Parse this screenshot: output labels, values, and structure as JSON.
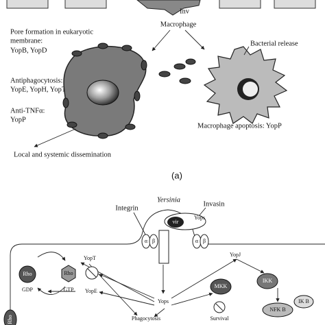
{
  "panel_a": {
    "inv": "Inv",
    "macrophage": "Macrophage",
    "pore_formation": [
      "Pore formation in eukaryotic",
      "membrane:"
    ],
    "pore_yops": "YopB, YopD",
    "antiphagocytosis": "Antiphagocytosis:",
    "antiphagocytosis_yops": "YopE, YopH, YopT",
    "anti_tnf": "Anti-TNFα:",
    "anti_tnf_yops": "YopP",
    "bacterial_release": "Bacterial release",
    "apoptosis": "Macrophage apoptosis: YopP",
    "dissemination": "Local and systemic dissemination",
    "label": "(a)"
  },
  "panel_b": {
    "organism": "Yersinia",
    "integrin": "Integrin",
    "invasin": "Invasin",
    "vir": "vir",
    "bacterial_yops": "Yops",
    "alpha": "α",
    "beta": "β",
    "rho_gdp": {
      "protein": "Rho",
      "state": "GDP"
    },
    "rho_gtp": {
      "protein": "Rho",
      "state": "GTP"
    },
    "yopt": "YopT",
    "yope": "YopE",
    "yopj": "YopJ",
    "yops": "Yops",
    "mkk": "MKK",
    "ikk": "IKK",
    "ikb": "IK B",
    "nfkb": "NFK B",
    "phagocytosis": "Phagocytosis",
    "survival": "Survival",
    "rho_partial": "Rho"
  }
}
